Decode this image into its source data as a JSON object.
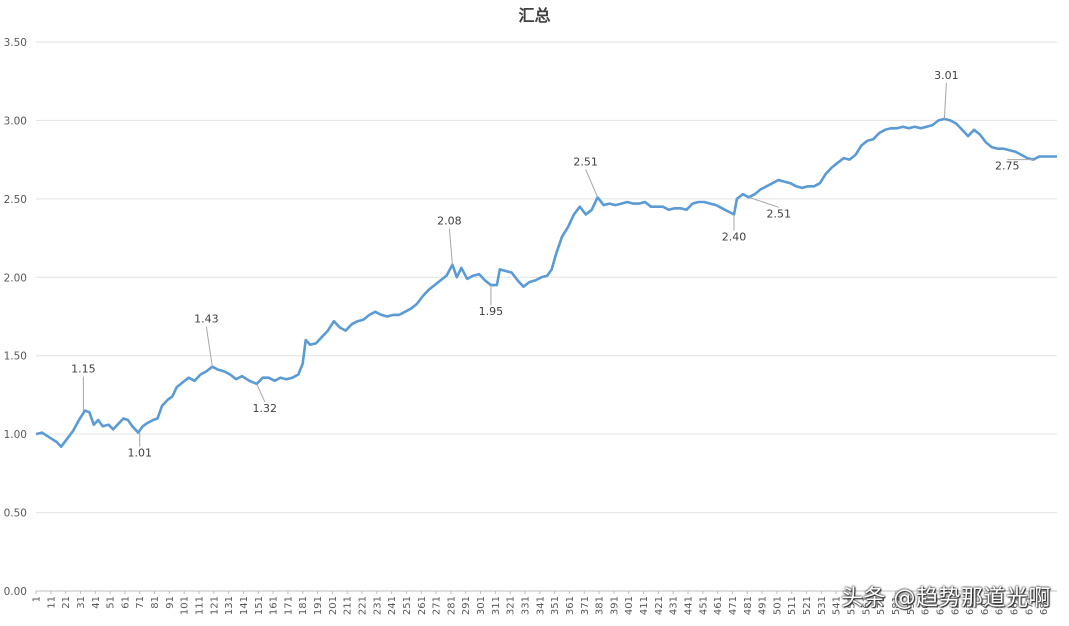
{
  "chart_data": {
    "type": "line",
    "title": "汇总",
    "xlabel": "",
    "ylabel": "",
    "ylim": [
      0,
      3.5
    ],
    "yticks": [
      "0.00",
      "0.50",
      "1.00",
      "1.50",
      "2.00",
      "2.50",
      "3.00",
      "3.50"
    ],
    "xlim": [
      1,
      690
    ],
    "xticks": [
      1,
      11,
      21,
      31,
      41,
      51,
      61,
      71,
      81,
      91,
      101,
      111,
      121,
      131,
      141,
      151,
      161,
      171,
      181,
      191,
      201,
      211,
      221,
      231,
      241,
      251,
      261,
      271,
      281,
      291,
      301,
      311,
      321,
      331,
      341,
      351,
      361,
      371,
      381,
      391,
      401,
      411,
      421,
      431,
      441,
      451,
      461,
      471,
      481,
      491,
      501,
      511,
      521,
      531,
      541,
      551,
      561,
      571,
      581,
      591,
      601,
      611,
      621,
      631,
      641,
      651,
      661,
      671,
      681
    ],
    "grid": true,
    "legend": "none",
    "line_color": "#5b9bd5",
    "series": [
      {
        "points": [
          [
            1,
            1.0
          ],
          [
            5,
            1.01
          ],
          [
            10,
            0.98
          ],
          [
            15,
            0.95
          ],
          [
            18,
            0.92
          ],
          [
            22,
            0.97
          ],
          [
            26,
            1.02
          ],
          [
            30,
            1.09
          ],
          [
            34,
            1.15
          ],
          [
            37,
            1.14
          ],
          [
            40,
            1.06
          ],
          [
            43,
            1.09
          ],
          [
            46,
            1.05
          ],
          [
            50,
            1.06
          ],
          [
            53,
            1.03
          ],
          [
            56,
            1.06
          ],
          [
            60,
            1.1
          ],
          [
            63,
            1.09
          ],
          [
            66,
            1.05
          ],
          [
            70,
            1.01
          ],
          [
            73,
            1.05
          ],
          [
            76,
            1.07
          ],
          [
            80,
            1.09
          ],
          [
            83,
            1.1
          ],
          [
            86,
            1.18
          ],
          [
            90,
            1.22
          ],
          [
            93,
            1.24
          ],
          [
            96,
            1.3
          ],
          [
            100,
            1.33
          ],
          [
            104,
            1.36
          ],
          [
            108,
            1.34
          ],
          [
            112,
            1.38
          ],
          [
            116,
            1.4
          ],
          [
            120,
            1.43
          ],
          [
            124,
            1.41
          ],
          [
            128,
            1.4
          ],
          [
            132,
            1.38
          ],
          [
            136,
            1.35
          ],
          [
            140,
            1.37
          ],
          [
            145,
            1.34
          ],
          [
            150,
            1.32
          ],
          [
            154,
            1.36
          ],
          [
            158,
            1.36
          ],
          [
            162,
            1.34
          ],
          [
            166,
            1.36
          ],
          [
            170,
            1.35
          ],
          [
            174,
            1.36
          ],
          [
            178,
            1.38
          ],
          [
            181,
            1.45
          ],
          [
            183,
            1.6
          ],
          [
            186,
            1.57
          ],
          [
            190,
            1.58
          ],
          [
            194,
            1.62
          ],
          [
            198,
            1.66
          ],
          [
            202,
            1.72
          ],
          [
            206,
            1.68
          ],
          [
            210,
            1.66
          ],
          [
            214,
            1.7
          ],
          [
            218,
            1.72
          ],
          [
            222,
            1.73
          ],
          [
            226,
            1.76
          ],
          [
            230,
            1.78
          ],
          [
            234,
            1.76
          ],
          [
            238,
            1.75
          ],
          [
            242,
            1.76
          ],
          [
            246,
            1.76
          ],
          [
            250,
            1.78
          ],
          [
            254,
            1.8
          ],
          [
            258,
            1.83
          ],
          [
            262,
            1.88
          ],
          [
            266,
            1.92
          ],
          [
            270,
            1.95
          ],
          [
            274,
            1.98
          ],
          [
            278,
            2.01
          ],
          [
            282,
            2.08
          ],
          [
            285,
            2.0
          ],
          [
            288,
            2.06
          ],
          [
            292,
            1.99
          ],
          [
            296,
            2.01
          ],
          [
            300,
            2.02
          ],
          [
            304,
            1.98
          ],
          [
            308,
            1.95
          ],
          [
            312,
            1.95
          ],
          [
            314,
            2.05
          ],
          [
            318,
            2.04
          ],
          [
            322,
            2.03
          ],
          [
            326,
            1.98
          ],
          [
            330,
            1.94
          ],
          [
            334,
            1.97
          ],
          [
            338,
            1.98
          ],
          [
            342,
            2.0
          ],
          [
            346,
            2.01
          ],
          [
            349,
            2.05
          ],
          [
            352,
            2.15
          ],
          [
            356,
            2.26
          ],
          [
            360,
            2.32
          ],
          [
            364,
            2.4
          ],
          [
            368,
            2.45
          ],
          [
            372,
            2.4
          ],
          [
            376,
            2.43
          ],
          [
            380,
            2.51
          ],
          [
            384,
            2.46
          ],
          [
            388,
            2.47
          ],
          [
            392,
            2.46
          ],
          [
            396,
            2.47
          ],
          [
            400,
            2.48
          ],
          [
            404,
            2.47
          ],
          [
            408,
            2.47
          ],
          [
            412,
            2.48
          ],
          [
            416,
            2.45
          ],
          [
            420,
            2.45
          ],
          [
            424,
            2.45
          ],
          [
            428,
            2.43
          ],
          [
            432,
            2.44
          ],
          [
            436,
            2.44
          ],
          [
            440,
            2.43
          ],
          [
            444,
            2.47
          ],
          [
            448,
            2.48
          ],
          [
            452,
            2.48
          ],
          [
            456,
            2.47
          ],
          [
            460,
            2.46
          ],
          [
            464,
            2.44
          ],
          [
            468,
            2.42
          ],
          [
            472,
            2.4
          ],
          [
            474,
            2.5
          ],
          [
            478,
            2.53
          ],
          [
            482,
            2.51
          ],
          [
            486,
            2.53
          ],
          [
            490,
            2.56
          ],
          [
            494,
            2.58
          ],
          [
            498,
            2.6
          ],
          [
            502,
            2.62
          ],
          [
            506,
            2.61
          ],
          [
            510,
            2.6
          ],
          [
            514,
            2.58
          ],
          [
            518,
            2.57
          ],
          [
            522,
            2.58
          ],
          [
            526,
            2.58
          ],
          [
            530,
            2.6
          ],
          [
            534,
            2.66
          ],
          [
            538,
            2.7
          ],
          [
            542,
            2.73
          ],
          [
            546,
            2.76
          ],
          [
            550,
            2.75
          ],
          [
            554,
            2.78
          ],
          [
            558,
            2.84
          ],
          [
            562,
            2.87
          ],
          [
            566,
            2.88
          ],
          [
            570,
            2.92
          ],
          [
            574,
            2.94
          ],
          [
            578,
            2.95
          ],
          [
            582,
            2.95
          ],
          [
            586,
            2.96
          ],
          [
            590,
            2.95
          ],
          [
            594,
            2.96
          ],
          [
            598,
            2.95
          ],
          [
            602,
            2.96
          ],
          [
            606,
            2.97
          ],
          [
            610,
            3.0
          ],
          [
            614,
            3.01
          ],
          [
            618,
            3.0
          ],
          [
            622,
            2.98
          ],
          [
            626,
            2.94
          ],
          [
            630,
            2.9
          ],
          [
            634,
            2.94
          ],
          [
            638,
            2.91
          ],
          [
            642,
            2.86
          ],
          [
            646,
            2.83
          ],
          [
            650,
            2.82
          ],
          [
            654,
            2.82
          ],
          [
            658,
            2.81
          ],
          [
            662,
            2.8
          ],
          [
            666,
            2.78
          ],
          [
            670,
            2.76
          ],
          [
            674,
            2.75
          ],
          [
            678,
            2.77
          ],
          [
            682,
            2.77
          ],
          [
            690,
            2.77
          ]
        ]
      }
    ],
    "annotations": [
      {
        "text": "1.15",
        "x": 33,
        "y": 1.15
      },
      {
        "text": "1.01",
        "x": 71,
        "y": 1.01
      },
      {
        "text": "1.43",
        "x": 120,
        "y": 1.43
      },
      {
        "text": "1.32",
        "x": 150,
        "y": 1.32
      },
      {
        "text": "2.08",
        "x": 282,
        "y": 2.08
      },
      {
        "text": "1.95",
        "x": 308,
        "y": 1.95
      },
      {
        "text": "2.51",
        "x": 380,
        "y": 2.51
      },
      {
        "text": "2.40",
        "x": 472,
        "y": 2.4
      },
      {
        "text": "2.51",
        "x": 482,
        "y": 2.51
      },
      {
        "text": "3.01",
        "x": 614,
        "y": 3.01
      },
      {
        "text": "2.75",
        "x": 674,
        "y": 2.75
      }
    ]
  },
  "watermark": "头条 @趋势那道光啊"
}
